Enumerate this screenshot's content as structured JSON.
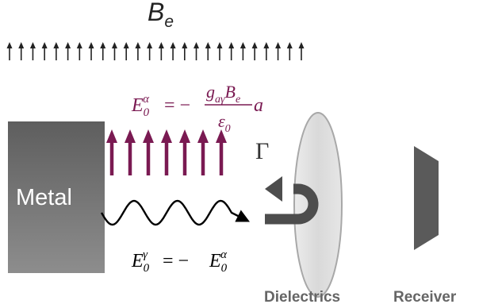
{
  "external_field": {
    "symbol": "B",
    "subscript": "e"
  },
  "metal": {
    "label": "Metal"
  },
  "axion_field_equation": {
    "lhs_symbol": "E",
    "lhs_sub": "0",
    "lhs_sup": "α",
    "equals_minus": "= −",
    "num_g": "g",
    "num_g_sub": "aγ",
    "num_B": "B",
    "num_B_sub": "e",
    "den_eps": "ε",
    "den_eps_sub": "0",
    "tail": "a"
  },
  "photon_field_equation": {
    "lhs_symbol": "E",
    "lhs_sub": "0",
    "lhs_sup": "γ",
    "equals_minus": "= −",
    "rhs_symbol": "E",
    "rhs_sub": "0",
    "rhs_sup": "α"
  },
  "reflection": {
    "symbol": "Γ"
  },
  "dielectrics": {
    "label": "Dielectrics"
  },
  "receiver": {
    "label": "Receiver"
  },
  "colors": {
    "axion_field": "#7a1a52",
    "metal_top": "#5e5e5e",
    "metal_bottom": "#8d8d8d",
    "lens_fill": "#dcdcdc",
    "lens_stroke": "#a8a8a8",
    "receiver": "#5a5a5a",
    "reflect_arrow": "#4d4d4d"
  },
  "counts": {
    "small_arrows": 26,
    "big_arrows": 7
  }
}
